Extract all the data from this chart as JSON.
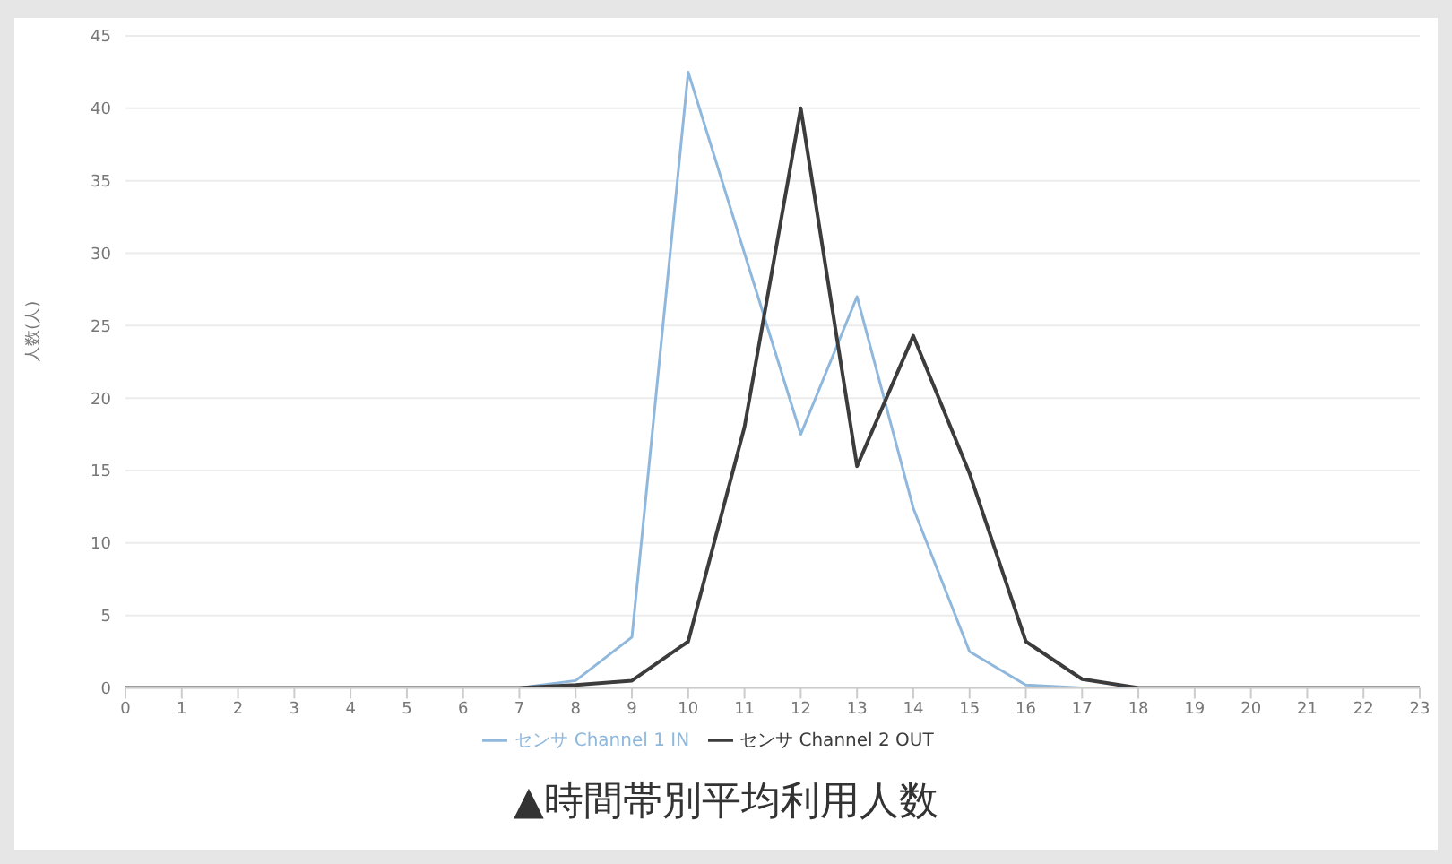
{
  "chart_data": {
    "type": "line",
    "title": "▲時間帯別平均利用人数",
    "ylabel": "人数(人)",
    "x": [
      0,
      1,
      2,
      3,
      4,
      5,
      6,
      7,
      8,
      9,
      10,
      11,
      12,
      13,
      14,
      15,
      16,
      17,
      18,
      19,
      20,
      21,
      22,
      23
    ],
    "xlim": [
      0,
      23
    ],
    "xticks": [
      0,
      1,
      2,
      3,
      4,
      5,
      6,
      7,
      8,
      9,
      10,
      11,
      12,
      13,
      14,
      15,
      16,
      17,
      18,
      19,
      20,
      21,
      22,
      23
    ],
    "series": [
      {
        "name": "センサ Channel 1 IN",
        "color": "#8fb8dc",
        "values": [
          0,
          0,
          0,
          0,
          0,
          0,
          0,
          0,
          0.5,
          3.5,
          42.5,
          30,
          17.5,
          27,
          12.4,
          2.5,
          0.2,
          0,
          0,
          0,
          0,
          0,
          0,
          0
        ]
      },
      {
        "name": "センサ Channel 2 OUT",
        "color": "#3c3c3c",
        "values": [
          0,
          0,
          0,
          0,
          0,
          0,
          0,
          0,
          0.2,
          0.5,
          3.2,
          18,
          40,
          15.3,
          24.3,
          14.8,
          3.2,
          0.6,
          0,
          0,
          0,
          0,
          0,
          0
        ]
      }
    ],
    "ylim": [
      0,
      45
    ],
    "yticks": [
      0,
      5,
      10,
      15,
      20,
      25,
      30,
      35,
      40,
      45
    ],
    "grid": "y",
    "legend": "bottom",
    "marker": "none",
    "line_style": "solid"
  }
}
